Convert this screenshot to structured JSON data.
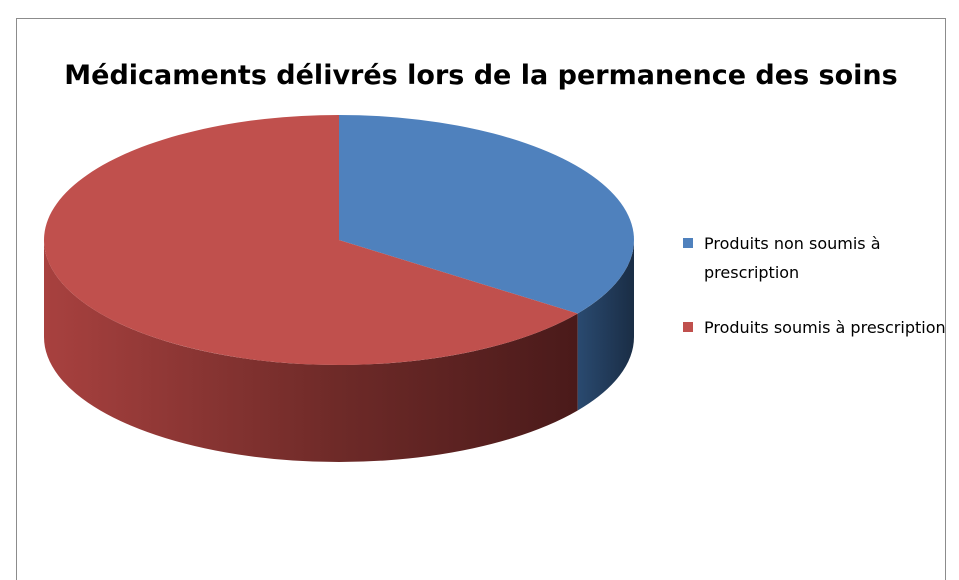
{
  "chart_data": {
    "type": "pie",
    "title": "Médicaments délivrés lors de la permanence des soins",
    "categories": [
      "Produits non soumis à prescription",
      "Produits soumis à prescription"
    ],
    "values": [
      35,
      65
    ],
    "colors": [
      "#4f81bd",
      "#c0504d"
    ],
    "legend": "right"
  }
}
